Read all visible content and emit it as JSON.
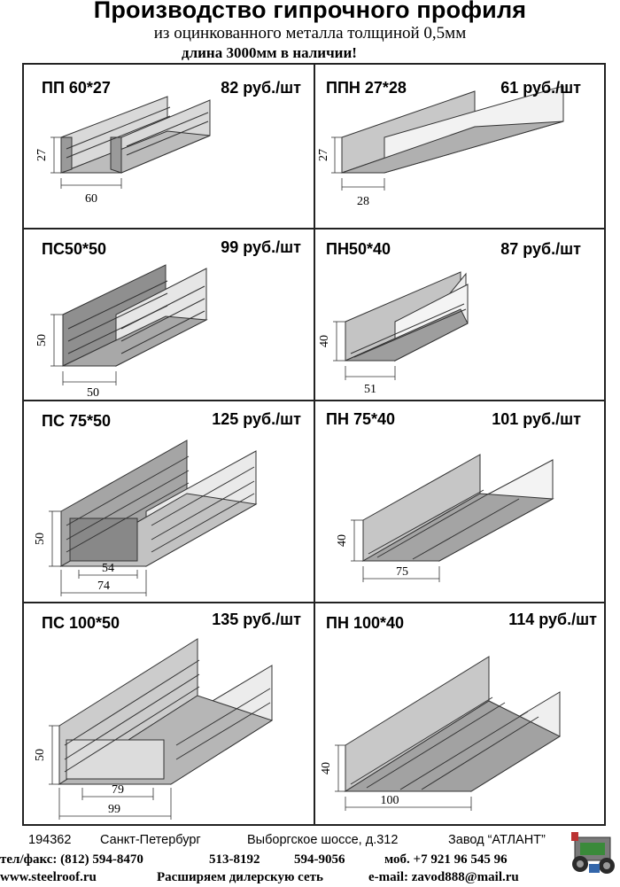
{
  "header": {
    "title": "Производство гипрочного профиля",
    "subtitle": "из оцинкованного металла толщиной 0,5мм",
    "stock_note": "длина 3000мм в наличии!"
  },
  "products": [
    {
      "name": "ПП 60*27",
      "price": "82 руб./шт",
      "height": "27",
      "width": "60",
      "inner_width": ""
    },
    {
      "name": "ППН 27*28",
      "price": "61 руб./шт",
      "height": "27",
      "width": "28",
      "inner_width": ""
    },
    {
      "name": "ПС50*50",
      "price": "99 руб./шт",
      "height": "50",
      "width": "50",
      "inner_width": ""
    },
    {
      "name": "ПН50*40",
      "price": "87 руб./шт",
      "height": "40",
      "width": "51",
      "inner_width": ""
    },
    {
      "name": "ПС 75*50",
      "price": "125 руб./шт",
      "height": "50",
      "width": "74",
      "inner_width": "54"
    },
    {
      "name": "ПН 75*40",
      "price": "101 руб./шт",
      "height": "40",
      "width": "75",
      "inner_width": ""
    },
    {
      "name": "ПС 100*50",
      "price": "135 руб./шт",
      "height": "50",
      "width": "99",
      "inner_width": "79"
    },
    {
      "name": "ПН 100*40",
      "price": "114 руб./шт",
      "height": "40",
      "width": "100",
      "inner_width": ""
    }
  ],
  "footer": {
    "postcode": "194362",
    "city": "Санкт-Петербург",
    "address": "Выборгское шоссе, д.312",
    "company": "Завод “АТЛАНТ”",
    "phone_label": "тел/факс: (812) 594-8470",
    "phone2": "513-8192",
    "phone3": "594-9056",
    "mobile": "моб. +7 921  96 545 96",
    "website": "www.steelroof.ru",
    "dealer_note": "Расширяем дилерскую сеть",
    "email": "e-mail:  zavod888@mail.ru"
  }
}
